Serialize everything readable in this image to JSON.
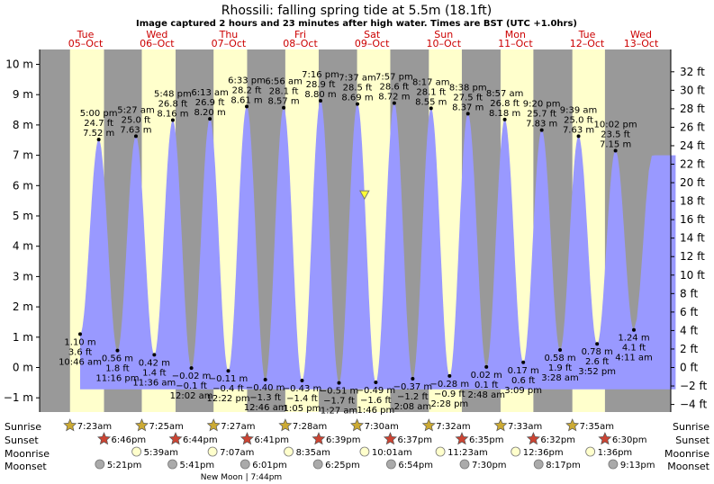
{
  "header": {
    "title": "Rhossili: falling  spring tide at 5.5m (18.1ft)",
    "subtitle": "Image captured 2 hours and 23 minutes after high water. Times are BST (UTC +1.0hrs)"
  },
  "colors": {
    "night": "#999999",
    "day": "#ffffcc",
    "tide": "#9999ff",
    "day_label": "#cc0000",
    "sun_star": "#ccaa33",
    "sunset_star": "#cc4433",
    "moon": "#ffffcc",
    "moon_set": "#aaaaaa",
    "marker": "#ffff33"
  },
  "chart_data": {
    "type": "area",
    "title": "Rhossili: falling  spring tide at 5.5m (18.1ft)",
    "ylabel_left": "m",
    "ylabel_right": "ft",
    "ylim": [
      -1.4,
      10.2
    ],
    "left_ticks": [
      "10 m",
      "9 m",
      "8 m",
      "7 m",
      "6 m",
      "5 m",
      "4 m",
      "3 m",
      "2 m",
      "1 m",
      "0 m",
      "−1 m"
    ],
    "right_ticks": [
      "32 ft",
      "30 ft",
      "28 ft",
      "26 ft",
      "24 ft",
      "22 ft",
      "20 ft",
      "18 ft",
      "16 ft",
      "14 ft",
      "12 ft",
      "10 ft",
      "8 ft",
      "6 ft",
      "4 ft",
      "2 ft",
      "0 ft",
      "−2 ft",
      "−4 ft"
    ],
    "days": [
      {
        "dow": "Tue",
        "date": "05–Oct"
      },
      {
        "dow": "Wed",
        "date": "06–Oct"
      },
      {
        "dow": "Thu",
        "date": "07–Oct"
      },
      {
        "dow": "Fri",
        "date": "08–Oct"
      },
      {
        "dow": "Sat",
        "date": "09–Oct"
      },
      {
        "dow": "Sun",
        "date": "10–Oct"
      },
      {
        "dow": "Mon",
        "date": "11–Oct"
      },
      {
        "dow": "Tue",
        "date": "12–Oct"
      },
      {
        "dow": "Wed",
        "date": "13–Oct"
      }
    ],
    "extremes": [
      {
        "type": "low",
        "time": "10:46 am",
        "m": "1.10 m",
        "ft": "3.6 ft",
        "h": 1.1,
        "t": 10.77
      },
      {
        "type": "high",
        "time": "5:00 pm",
        "m": "7.52 m",
        "ft": "24.7 ft",
        "h": 7.52,
        "t": 17.0
      },
      {
        "type": "low",
        "time": "11:16 pm",
        "m": "0.56 m",
        "ft": "1.8 ft",
        "h": 0.56,
        "t": 23.27
      },
      {
        "type": "high",
        "time": "5:27 am",
        "m": "7.63 m",
        "ft": "25.0 ft",
        "h": 7.63,
        "t": 29.45
      },
      {
        "type": "low",
        "time": "11:36 am",
        "m": "0.42 m",
        "ft": "1.4 ft",
        "h": 0.42,
        "t": 35.6
      },
      {
        "type": "high",
        "time": "5:48 pm",
        "m": "8.16 m",
        "ft": "26.8 ft",
        "h": 8.16,
        "t": 41.8
      },
      {
        "type": "low",
        "time": "12:02 am",
        "m": "−0.02 m",
        "ft": "−0.1 ft",
        "h": -0.02,
        "t": 48.03
      },
      {
        "type": "high",
        "time": "6:13 am",
        "m": "8.20 m",
        "ft": "26.9 ft",
        "h": 8.2,
        "t": 54.22
      },
      {
        "type": "low",
        "time": "12:22 pm",
        "m": "−0.11 m",
        "ft": "−0.4 ft",
        "h": -0.11,
        "t": 60.37
      },
      {
        "type": "high",
        "time": "6:33 pm",
        "m": "8.61 m",
        "ft": "28.2 ft",
        "h": 8.61,
        "t": 66.55
      },
      {
        "type": "low",
        "time": "12:46 am",
        "m": "−0.40 m",
        "ft": "−1.3 ft",
        "h": -0.4,
        "t": 72.77
      },
      {
        "type": "high",
        "time": "6:56 am",
        "m": "8.57 m",
        "ft": "28.1 ft",
        "h": 8.57,
        "t": 78.93
      },
      {
        "type": "low",
        "time": "1:05 pm",
        "m": "−0.43 m",
        "ft": "−1.4 ft",
        "h": -0.43,
        "t": 85.08
      },
      {
        "type": "high",
        "time": "7:16 pm",
        "m": "8.80 m",
        "ft": "28.9 ft",
        "h": 8.8,
        "t": 91.27
      },
      {
        "type": "low",
        "time": "1:27 am",
        "m": "−0.51 m",
        "ft": "−1.7 ft",
        "h": -0.51,
        "t": 97.45
      },
      {
        "type": "high",
        "time": "7:37 am",
        "m": "8.69 m",
        "ft": "28.5 ft",
        "h": 8.69,
        "t": 103.62
      },
      {
        "type": "low",
        "time": "1:46 pm",
        "m": "−0.49 m",
        "ft": "−1.6 ft",
        "h": -0.49,
        "t": 109.77
      },
      {
        "type": "high",
        "time": "7:57 pm",
        "m": "8.72 m",
        "ft": "28.6 ft",
        "h": 8.72,
        "t": 115.95
      },
      {
        "type": "low",
        "time": "2:08 am",
        "m": "−0.37 m",
        "ft": "−1.2 ft",
        "h": -0.37,
        "t": 122.13
      },
      {
        "type": "high",
        "time": "8:17 am",
        "m": "8.55 m",
        "ft": "28.1 ft",
        "h": 8.55,
        "t": 128.28
      },
      {
        "type": "low",
        "time": "2:28 pm",
        "m": "−0.28 m",
        "ft": "−0.9 ft",
        "h": -0.28,
        "t": 134.47
      },
      {
        "type": "high",
        "time": "8:38 pm",
        "m": "8.37 m",
        "ft": "27.5 ft",
        "h": 8.37,
        "t": 140.63
      },
      {
        "type": "low",
        "time": "2:48 am",
        "m": "0.02 m",
        "ft": "0.1 ft",
        "h": 0.02,
        "t": 146.8
      },
      {
        "type": "high",
        "time": "8:57 am",
        "m": "8.18 m",
        "ft": "26.8 ft",
        "h": 8.18,
        "t": 152.95
      },
      {
        "type": "low",
        "time": "3:09 pm",
        "m": "0.17 m",
        "ft": "0.6 ft",
        "h": 0.17,
        "t": 159.15
      },
      {
        "type": "high",
        "time": "9:20 pm",
        "m": "7.83 m",
        "ft": "25.7 ft",
        "h": 7.83,
        "t": 165.33
      },
      {
        "type": "low",
        "time": "3:28 am",
        "m": "0.58 m",
        "ft": "1.9 ft",
        "h": 0.58,
        "t": 171.47
      },
      {
        "type": "high",
        "time": "9:39 am",
        "m": "7.63 m",
        "ft": "25.0 ft",
        "h": 7.63,
        "t": 177.65
      },
      {
        "type": "low",
        "time": "3:52 pm",
        "m": "0.78 m",
        "ft": "2.6 ft",
        "h": 0.78,
        "t": 183.87
      },
      {
        "type": "high",
        "time": "10:02 pm",
        "m": "7.15 m",
        "ft": "23.5 ft",
        "h": 7.15,
        "t": 190.03
      },
      {
        "type": "low",
        "time": "4:11 am",
        "m": "1.24 m",
        "ft": "4.1 ft",
        "h": 1.24,
        "t": 196.18
      }
    ],
    "current": {
      "t": 105.98,
      "h": 5.5
    },
    "sunrise": [
      "7:23am",
      "7:25am",
      "7:27am",
      "7:28am",
      "7:30am",
      "7:32am",
      "7:33am",
      "7:35am"
    ],
    "sunset": [
      "6:46pm",
      "6:44pm",
      "6:41pm",
      "6:39pm",
      "6:37pm",
      "6:35pm",
      "6:32pm",
      "6:30pm"
    ],
    "moonrise": [
      "5:39am",
      "7:07am",
      "8:35am",
      "10:01am",
      "11:23am",
      "12:36pm",
      "1:36pm"
    ],
    "moonset": [
      "5:21pm",
      "5:41pm",
      "6:01pm",
      "6:25pm",
      "6:54pm",
      "7:30pm",
      "8:17pm",
      "9:13pm"
    ],
    "new_moon": "New Moon | 7:44pm"
  },
  "rows": {
    "sunrise": "Sunrise",
    "sunset": "Sunset",
    "moonrise": "Moonrise",
    "moonset": "Moonset"
  }
}
